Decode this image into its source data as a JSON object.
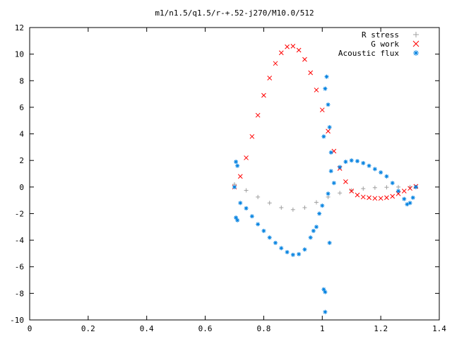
{
  "chart_data": {
    "type": "scatter",
    "title": "m1/n1.5/q1.5/r-+.52-j270/M10.0/512",
    "xlabel": "",
    "ylabel": "",
    "xlim": [
      0,
      1.4
    ],
    "ylim": [
      -10,
      12
    ],
    "x_ticks": [
      "0",
      "0.2",
      "0.4",
      "0.6",
      "0.8",
      "1",
      "1.2",
      "1.4"
    ],
    "y_ticks": [
      "-10",
      "-8",
      "-6",
      "-4",
      "-2",
      "0",
      "2",
      "4",
      "6",
      "8",
      "10",
      "12"
    ],
    "legend_position": "top-right",
    "grid": false,
    "series": [
      {
        "name": "R stress",
        "marker": "+",
        "color": "#a0a0a0",
        "points": [
          [
            0.7,
            0.2
          ],
          [
            0.74,
            -0.25
          ],
          [
            0.78,
            -0.75
          ],
          [
            0.82,
            -1.2
          ],
          [
            0.86,
            -1.55
          ],
          [
            0.9,
            -1.7
          ],
          [
            0.94,
            -1.55
          ],
          [
            0.98,
            -1.15
          ],
          [
            1.02,
            -0.75
          ],
          [
            1.06,
            -0.45
          ],
          [
            1.1,
            -0.25
          ],
          [
            1.14,
            -0.12
          ],
          [
            1.18,
            -0.05
          ],
          [
            1.22,
            -0.02
          ],
          [
            1.26,
            0.0
          ],
          [
            1.3,
            0.0
          ],
          [
            1.32,
            0.0
          ]
        ]
      },
      {
        "name": "G work",
        "marker": "x",
        "color": "#ff0000",
        "points": [
          [
            0.7,
            0.0
          ],
          [
            0.72,
            0.8
          ],
          [
            0.74,
            2.2
          ],
          [
            0.76,
            3.8
          ],
          [
            0.78,
            5.4
          ],
          [
            0.8,
            6.9
          ],
          [
            0.82,
            8.2
          ],
          [
            0.84,
            9.3
          ],
          [
            0.86,
            10.1
          ],
          [
            0.88,
            10.55
          ],
          [
            0.9,
            10.6
          ],
          [
            0.92,
            10.3
          ],
          [
            0.94,
            9.6
          ],
          [
            0.96,
            8.6
          ],
          [
            0.98,
            7.3
          ],
          [
            1.0,
            5.8
          ],
          [
            1.02,
            4.2
          ],
          [
            1.04,
            2.7
          ],
          [
            1.06,
            1.4
          ],
          [
            1.08,
            0.4
          ],
          [
            1.1,
            -0.3
          ],
          [
            1.12,
            -0.6
          ],
          [
            1.14,
            -0.75
          ],
          [
            1.16,
            -0.8
          ],
          [
            1.18,
            -0.85
          ],
          [
            1.2,
            -0.85
          ],
          [
            1.22,
            -0.8
          ],
          [
            1.24,
            -0.7
          ],
          [
            1.26,
            -0.5
          ],
          [
            1.28,
            -0.3
          ],
          [
            1.3,
            -0.1
          ],
          [
            1.32,
            0.05
          ]
        ]
      },
      {
        "name": "Acoustic flux",
        "marker": "*",
        "color": "#0080e0",
        "points": [
          [
            0.7,
            0.0
          ],
          [
            0.705,
            1.9
          ],
          [
            0.71,
            1.6
          ],
          [
            0.705,
            -2.3
          ],
          [
            0.71,
            -2.5
          ],
          [
            0.72,
            -1.2
          ],
          [
            0.74,
            -1.6
          ],
          [
            0.76,
            -2.2
          ],
          [
            0.78,
            -2.8
          ],
          [
            0.8,
            -3.3
          ],
          [
            0.82,
            -3.8
          ],
          [
            0.84,
            -4.2
          ],
          [
            0.86,
            -4.6
          ],
          [
            0.88,
            -4.9
          ],
          [
            0.9,
            -5.1
          ],
          [
            0.92,
            -5.05
          ],
          [
            0.94,
            -4.7
          ],
          [
            0.96,
            -3.8
          ],
          [
            0.97,
            -3.3
          ],
          [
            0.98,
            -3.0
          ],
          [
            0.99,
            -2.0
          ],
          [
            1.0,
            -1.4
          ],
          [
            1.005,
            3.8
          ],
          [
            1.01,
            7.4
          ],
          [
            1.015,
            8.3
          ],
          [
            1.02,
            6.2
          ],
          [
            1.025,
            4.5
          ],
          [
            1.03,
            2.6
          ],
          [
            1.03,
            1.2
          ],
          [
            1.02,
            -0.5
          ],
          [
            1.025,
            -4.2
          ],
          [
            1.005,
            -7.7
          ],
          [
            1.01,
            -7.9
          ],
          [
            1.01,
            -9.4
          ],
          [
            1.04,
            0.3
          ],
          [
            1.06,
            1.5
          ],
          [
            1.08,
            1.9
          ],
          [
            1.1,
            2.0
          ],
          [
            1.12,
            1.95
          ],
          [
            1.14,
            1.8
          ],
          [
            1.16,
            1.6
          ],
          [
            1.18,
            1.35
          ],
          [
            1.2,
            1.1
          ],
          [
            1.22,
            0.8
          ],
          [
            1.24,
            0.3
          ],
          [
            1.26,
            -0.3
          ],
          [
            1.28,
            -0.9
          ],
          [
            1.29,
            -1.3
          ],
          [
            1.3,
            -1.2
          ],
          [
            1.31,
            -0.8
          ],
          [
            1.32,
            0.0
          ]
        ]
      }
    ]
  }
}
